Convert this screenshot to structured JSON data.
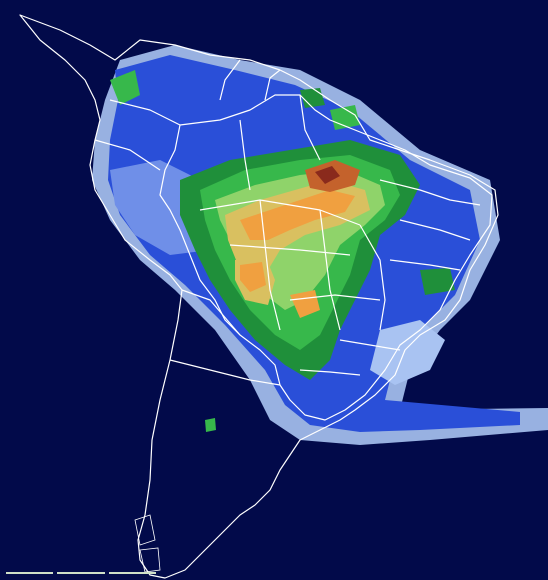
{
  "map": {
    "type": "precipitation-forecast",
    "region": "South America",
    "background_color": "#020a4a",
    "border_color": "#ffffff",
    "palette": [
      "#0b1f8f",
      "#2a4fd8",
      "#6f8fe8",
      "#a9c3f2",
      "#1f8f3a",
      "#37b84b",
      "#8fd36a",
      "#d9c060",
      "#f0a040",
      "#c4622c",
      "#8a2a1c"
    ],
    "legend_visible": false,
    "labels_visible": false
  },
  "scale_bar": {
    "segments": 3,
    "color": "#cfe0c8"
  }
}
